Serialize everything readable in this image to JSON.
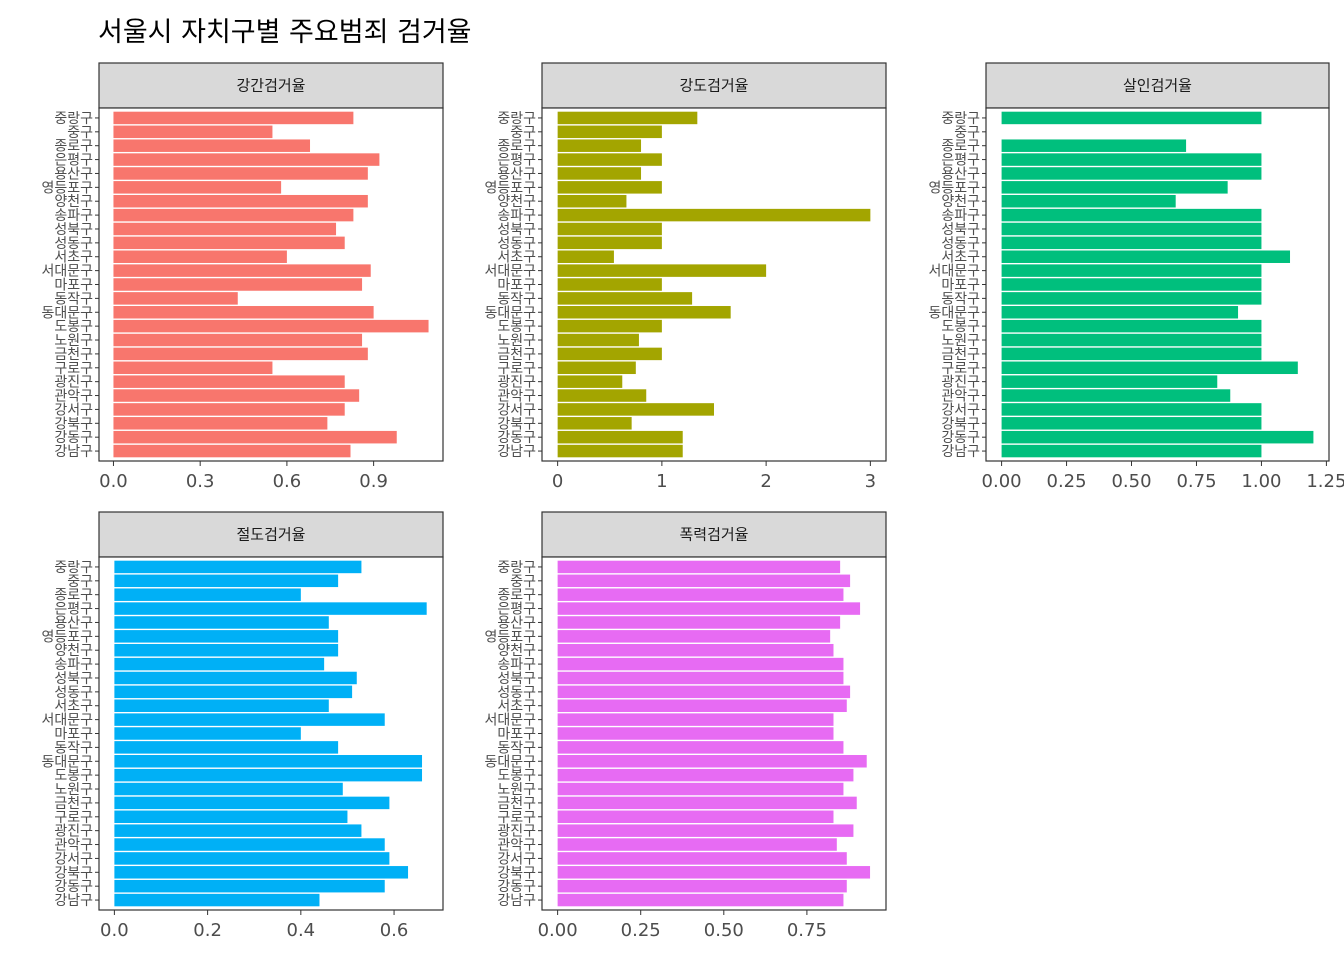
{
  "title": "서울시 자치구별 주요범죄 검거율",
  "chart_data": [
    {
      "type": "bar",
      "orientation": "horizontal",
      "facet": "강간검거율",
      "color": "#F8766D",
      "categories": [
        "강남구",
        "강동구",
        "강북구",
        "강서구",
        "관악구",
        "광진구",
        "구로구",
        "금천구",
        "노원구",
        "도봉구",
        "동대문구",
        "동작구",
        "마포구",
        "서대문구",
        "서초구",
        "성동구",
        "성북구",
        "송파구",
        "양천구",
        "영등포구",
        "용산구",
        "은평구",
        "종로구",
        "중구",
        "중랑구"
      ],
      "values": [
        0.82,
        0.98,
        0.74,
        0.8,
        0.85,
        0.8,
        0.55,
        0.88,
        0.86,
        1.09,
        0.9,
        0.43,
        0.86,
        0.89,
        0.6,
        0.8,
        0.77,
        0.83,
        0.88,
        0.58,
        0.88,
        0.92,
        0.68,
        0.55,
        0.83
      ],
      "xlim": [
        -0.05,
        1.14
      ],
      "ticks": [
        0.0,
        0.3,
        0.6,
        0.9
      ],
      "tick_labels": [
        "0.0",
        "0.3",
        "0.6",
        "0.9"
      ]
    },
    {
      "type": "bar",
      "orientation": "horizontal",
      "facet": "강도검거율",
      "color": "#A3A500",
      "categories": [
        "강남구",
        "강동구",
        "강북구",
        "강서구",
        "관악구",
        "광진구",
        "구로구",
        "금천구",
        "노원구",
        "도봉구",
        "동대문구",
        "동작구",
        "마포구",
        "서대문구",
        "서초구",
        "성동구",
        "성북구",
        "송파구",
        "양천구",
        "영등포구",
        "용산구",
        "은평구",
        "종로구",
        "중구",
        "중랑구"
      ],
      "values": [
        1.2,
        1.2,
        0.71,
        1.5,
        0.85,
        0.62,
        0.75,
        1.0,
        0.78,
        1.0,
        1.66,
        1.29,
        1.0,
        2.0,
        0.54,
        1.0,
        1.0,
        3.0,
        0.66,
        1.0,
        0.8,
        1.0,
        0.8,
        1.0,
        1.34
      ],
      "xlim": [
        -0.15,
        3.15
      ],
      "ticks": [
        0,
        1,
        2,
        3
      ],
      "tick_labels": [
        "0",
        "1",
        "2",
        "3"
      ]
    },
    {
      "type": "bar",
      "orientation": "horizontal",
      "facet": "살인검거율",
      "color": "#00BF7D",
      "categories": [
        "강남구",
        "강동구",
        "강북구",
        "강서구",
        "관악구",
        "광진구",
        "구로구",
        "금천구",
        "노원구",
        "도봉구",
        "동대문구",
        "동작구",
        "마포구",
        "서대문구",
        "서초구",
        "성동구",
        "성북구",
        "송파구",
        "양천구",
        "영등포구",
        "용산구",
        "은평구",
        "종로구",
        "중구",
        "중랑구"
      ],
      "values": [
        1.0,
        1.2,
        1.0,
        1.0,
        0.88,
        0.83,
        1.14,
        1.0,
        1.0,
        1.0,
        0.91,
        1.0,
        1.0,
        1.0,
        1.11,
        1.0,
        1.0,
        1.0,
        0.67,
        0.87,
        1.0,
        1.0,
        0.71,
        0.0,
        1.0
      ],
      "xlim": [
        -0.06,
        1.26
      ],
      "ticks": [
        0.0,
        0.25,
        0.5,
        0.75,
        1.0,
        1.25
      ],
      "tick_labels": [
        "0.00",
        "0.25",
        "0.50",
        "0.75",
        "1.00",
        "1.25"
      ]
    },
    {
      "type": "bar",
      "orientation": "horizontal",
      "facet": "절도검거율",
      "color": "#00B0F6",
      "categories": [
        "강남구",
        "강동구",
        "강북구",
        "강서구",
        "관악구",
        "광진구",
        "구로구",
        "금천구",
        "노원구",
        "도봉구",
        "동대문구",
        "동작구",
        "마포구",
        "서대문구",
        "서초구",
        "성동구",
        "성북구",
        "송파구",
        "양천구",
        "영등포구",
        "용산구",
        "은평구",
        "종로구",
        "중구",
        "중랑구"
      ],
      "values": [
        0.44,
        0.58,
        0.63,
        0.59,
        0.58,
        0.53,
        0.5,
        0.59,
        0.49,
        0.66,
        0.66,
        0.48,
        0.4,
        0.58,
        0.46,
        0.51,
        0.52,
        0.45,
        0.48,
        0.48,
        0.46,
        0.67,
        0.4,
        0.48,
        0.53
      ],
      "xlim": [
        -0.033,
        0.705
      ],
      "ticks": [
        0.0,
        0.2,
        0.4,
        0.6
      ],
      "tick_labels": [
        "0.0",
        "0.2",
        "0.4",
        "0.6"
      ]
    },
    {
      "type": "bar",
      "orientation": "horizontal",
      "facet": "폭력검거율",
      "color": "#E76BF3",
      "categories": [
        "강남구",
        "강동구",
        "강북구",
        "강서구",
        "관악구",
        "광진구",
        "구로구",
        "금천구",
        "노원구",
        "도봉구",
        "동대문구",
        "동작구",
        "마포구",
        "서대문구",
        "서초구",
        "성동구",
        "성북구",
        "송파구",
        "양천구",
        "영등포구",
        "용산구",
        "은평구",
        "종로구",
        "중구",
        "중랑구"
      ],
      "values": [
        0.86,
        0.87,
        0.94,
        0.87,
        0.84,
        0.89,
        0.83,
        0.9,
        0.86,
        0.89,
        0.93,
        0.86,
        0.83,
        0.83,
        0.87,
        0.88,
        0.86,
        0.86,
        0.83,
        0.82,
        0.85,
        0.91,
        0.86,
        0.88,
        0.85
      ],
      "xlim": [
        -0.047,
        0.988
      ],
      "ticks": [
        0.0,
        0.25,
        0.5,
        0.75
      ],
      "tick_labels": [
        "0.00",
        "0.25",
        "0.50",
        "0.75"
      ]
    }
  ]
}
